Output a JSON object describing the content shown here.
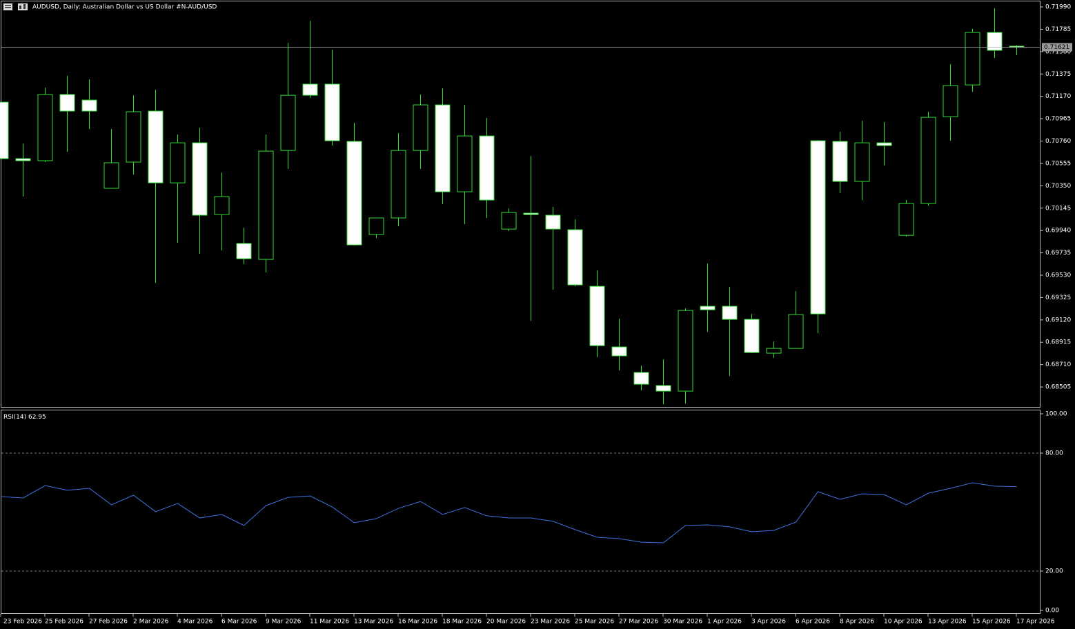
{
  "chart_data": [
    {
      "type": "candlestick",
      "title": "AUDUSD, Daily:  Australian Dollar vs US Dollar #N-AUD/USD",
      "categories": [
        "23 Feb 2026",
        null,
        "25 Feb 2026",
        null,
        "27 Feb 2026",
        null,
        "2 Mar 2026",
        null,
        "4 Mar 2026",
        null,
        "6 Mar 2026",
        null,
        "9 Mar 2026",
        null,
        "11 Mar 2026",
        null,
        "13 Mar 2026",
        null,
        "16 Mar 2026",
        null,
        "18 Mar 2026",
        null,
        "20 Mar 2026",
        null,
        "23 Mar 2026",
        null,
        "25 Mar 2026",
        null,
        "27 Mar 2026",
        null,
        "30 Mar 2026",
        null,
        "1 Apr 2026",
        null,
        "3 Apr 2026",
        null,
        "6 Apr 2026",
        null,
        "8 Apr 2026",
        null,
        "10 Apr 2026",
        null,
        "13 Apr 2026",
        null,
        "15 Apr 2026",
        null,
        "17 Apr 2026"
      ],
      "open": [
        0.71117,
        0.70599,
        0.7058,
        0.71187,
        0.71136,
        0.70327,
        0.70567,
        0.71035,
        0.70377,
        0.70744,
        0.70086,
        0.69821,
        0.69675,
        0.70674,
        0.71282,
        0.71282,
        0.70757,
        0.69903,
        0.70055,
        0.70674,
        0.71092,
        0.70295,
        0.70807,
        0.69953,
        0.70099,
        0.7008,
        0.69947,
        0.69428,
        0.68872,
        0.68638,
        0.68518,
        0.68467,
        0.69245,
        0.69245,
        0.69125,
        0.68815,
        0.68859,
        0.70763,
        0.70757,
        0.7039,
        0.70744,
        0.69896,
        0.70187,
        0.70984,
        0.71275,
        0.71756,
        0.7163
      ],
      "high": [
        0.71117,
        0.70738,
        0.7125,
        0.71358,
        0.71326,
        0.70871,
        0.7118,
        0.71231,
        0.7082,
        0.70883,
        0.70472,
        0.69966,
        0.7082,
        0.71661,
        0.71863,
        0.71598,
        0.70927,
        0.70055,
        0.70833,
        0.71187,
        0.71244,
        0.71092,
        0.70972,
        0.70143,
        0.70624,
        0.70156,
        0.70042,
        0.69574,
        0.69131,
        0.68701,
        0.68758,
        0.69226,
        0.69637,
        0.69422,
        0.69175,
        0.68922,
        0.69384,
        0.70769,
        0.70845,
        0.70946,
        0.70934,
        0.70219,
        0.71029,
        0.71465,
        0.71788,
        0.71977,
        0.7164
      ],
      "low": [
        0.70599,
        0.70251,
        0.70567,
        0.70662,
        0.70871,
        0.70327,
        0.70453,
        0.6946,
        0.69827,
        0.69726,
        0.69757,
        0.69631,
        0.69555,
        0.70504,
        0.71155,
        0.70719,
        0.69802,
        0.69871,
        0.69979,
        0.70504,
        0.70181,
        0.69998,
        0.70055,
        0.69934,
        0.69112,
        0.69397,
        0.69428,
        0.68777,
        0.68657,
        0.68473,
        0.68347,
        0.68353,
        0.69011,
        0.68606,
        0.68815,
        0.68771,
        0.68859,
        0.68998,
        0.70282,
        0.70219,
        0.70535,
        0.69884,
        0.70168,
        0.70763,
        0.71212,
        0.71522,
        0.71547
      ],
      "close": [
        0.70599,
        0.7058,
        0.71187,
        0.71035,
        0.71035,
        0.70561,
        0.71029,
        0.70377,
        0.70744,
        0.7008,
        0.70251,
        0.69681,
        0.70668,
        0.7118,
        0.7118,
        0.70763,
        0.69808,
        0.70055,
        0.70674,
        0.71092,
        0.70295,
        0.70807,
        0.70219,
        0.70105,
        0.70086,
        0.69953,
        0.69441,
        0.68884,
        0.6879,
        0.6853,
        0.68467,
        0.69207,
        0.69213,
        0.69125,
        0.68821,
        0.68859,
        0.69169,
        0.69175,
        0.7039,
        0.70744,
        0.70719,
        0.70187,
        0.70978,
        0.71269,
        0.71756,
        0.71592,
        0.71621
      ],
      "bid": 0.71621,
      "ylim": [
        0.68322,
        0.72041
      ],
      "yticks": [
        {
          "value": 0.7199,
          "label": "0.71990"
        },
        0.71785,
        {
          "value": 0.7158,
          "label": "0.71580"
        },
        0.71375,
        {
          "value": 0.7117,
          "label": "0.71170"
        },
        0.70965,
        {
          "value": 0.7076,
          "label": "0.70760"
        },
        0.70555,
        {
          "value": 0.7035,
          "label": "0.70350"
        },
        0.70145,
        {
          "value": 0.6994,
          "label": "0.69940"
        },
        0.69735,
        {
          "value": 0.6953,
          "label": "0.69530"
        },
        0.69325,
        {
          "value": 0.6912,
          "label": "0.69120"
        },
        0.68915,
        {
          "value": 0.6871,
          "label": "0.68710"
        },
        0.68505
      ],
      "wick_color": "#33dd33",
      "bull_color": "#000000",
      "bear_color": "#ffffff"
    },
    {
      "type": "line",
      "name": "RSI(14)",
      "color": "#3f73e0",
      "values": [
        57.9,
        57.2,
        63.5,
        61.1,
        62.1,
        53.7,
        58.6,
        50.2,
        54.4,
        47.0,
        48.8,
        43.2,
        53.3,
        57.5,
        58.2,
        52.6,
        44.6,
        46.7,
        51.9,
        55.4,
        48.8,
        52.3,
        48.1,
        47.0,
        47.0,
        45.3,
        41.1,
        37.2,
        36.5,
        34.7,
        34.4,
        43.2,
        43.5,
        42.5,
        40.0,
        40.7,
        44.9,
        60.4,
        56.5,
        59.3,
        58.9,
        53.7,
        59.6,
        62.1,
        64.9,
        63.2,
        62.95
      ],
      "ylim": [
        0,
        100
      ],
      "yticks": [
        {
          "value": 100,
          "label": "100.00"
        },
        {
          "value": 80,
          "label": "80.00"
        },
        {
          "value": 20,
          "label": "20.00"
        },
        {
          "value": 0,
          "label": "0.00"
        }
      ]
    }
  ]
}
